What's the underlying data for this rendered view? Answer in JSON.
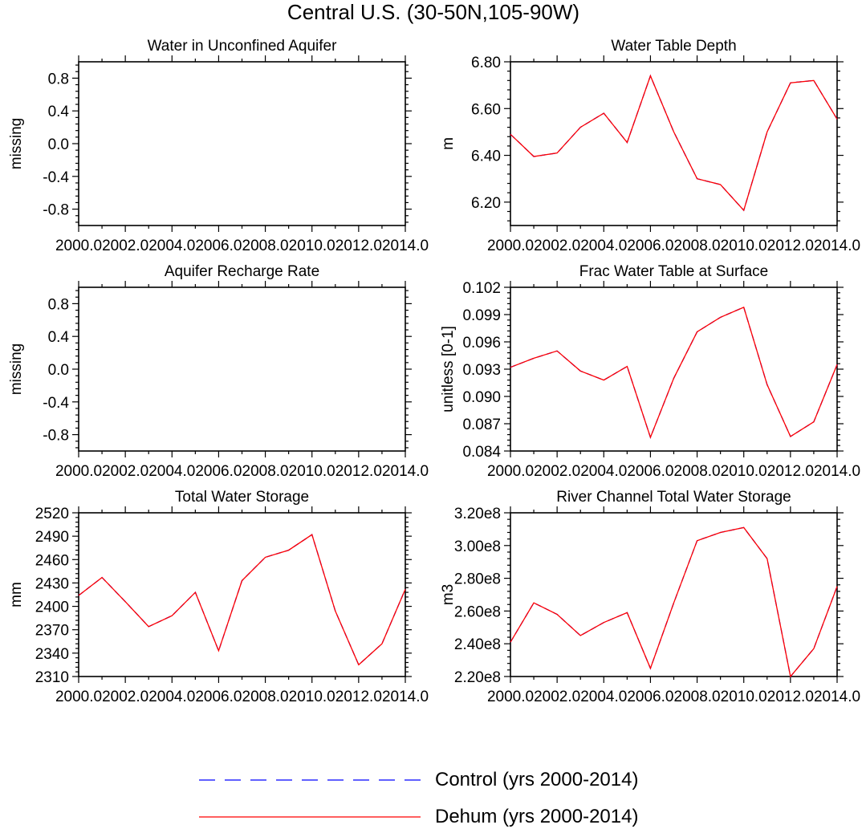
{
  "figure_title": "Central U.S. (30-50N,105-90W)",
  "legend": {
    "items": [
      {
        "label": "Control (yrs 2000-2014)",
        "color": "#0000ff",
        "style": "dashed"
      },
      {
        "label": "Dehum (yrs 2000-2014)",
        "color": "#ff0000",
        "style": "solid"
      }
    ]
  },
  "chart_data": [
    {
      "id": "water-unconfined-aquifer",
      "type": "line",
      "title": "Water in Unconfined Aquifer",
      "ylabel": "missing",
      "xlim": [
        2000,
        2014
      ],
      "ylim": [
        -1,
        1
      ],
      "xticks": [
        2000,
        2002,
        2004,
        2006,
        2008,
        2010,
        2012,
        2014
      ],
      "xtick_labels": [
        "2000.0",
        "2002.0",
        "2004.0",
        "2006.0",
        "2008.0",
        "2010.0",
        "2012.0",
        "2014.0"
      ],
      "yticks": [
        -0.8,
        -0.4,
        0.0,
        0.4,
        0.8
      ],
      "ytick_labels": [
        "-0.8",
        "-0.4",
        "0.0",
        "0.4",
        "0.8"
      ],
      "x": [],
      "series": []
    },
    {
      "id": "water-table-depth",
      "type": "line",
      "title": "Water Table Depth",
      "ylabel": "m",
      "xlim": [
        2000,
        2014
      ],
      "ylim": [
        6.1,
        6.8
      ],
      "xticks": [
        2000,
        2002,
        2004,
        2006,
        2008,
        2010,
        2012,
        2014
      ],
      "xtick_labels": [
        "2000.0",
        "2002.0",
        "2004.0",
        "2006.0",
        "2008.0",
        "2010.0",
        "2012.0",
        "2014.0"
      ],
      "yticks": [
        6.2,
        6.4,
        6.6,
        6.8
      ],
      "ytick_labels": [
        "6.20",
        "6.40",
        "6.60",
        "6.80"
      ],
      "x": [
        2000,
        2001,
        2002,
        2003,
        2004,
        2005,
        2006,
        2007,
        2008,
        2009,
        2010,
        2011,
        2012,
        2013,
        2014
      ],
      "series": [
        {
          "values": [
            6.49,
            6.395,
            6.41,
            6.52,
            6.58,
            6.455,
            6.74,
            6.5,
            6.3,
            6.275,
            6.165,
            6.5,
            6.71,
            6.72,
            6.555
          ],
          "color": "#0000ff",
          "style": "dashed"
        },
        {
          "values": [
            6.49,
            6.395,
            6.41,
            6.52,
            6.58,
            6.455,
            6.74,
            6.5,
            6.3,
            6.275,
            6.165,
            6.5,
            6.71,
            6.72,
            6.555
          ],
          "color": "#ff0000",
          "style": "solid"
        }
      ]
    },
    {
      "id": "aquifer-recharge-rate",
      "type": "line",
      "title": "Aquifer Recharge Rate",
      "ylabel": "missing",
      "xlim": [
        2000,
        2014
      ],
      "ylim": [
        -1,
        1
      ],
      "xticks": [
        2000,
        2002,
        2004,
        2006,
        2008,
        2010,
        2012,
        2014
      ],
      "xtick_labels": [
        "2000.0",
        "2002.0",
        "2004.0",
        "2006.0",
        "2008.0",
        "2010.0",
        "2012.0",
        "2014.0"
      ],
      "yticks": [
        -0.8,
        -0.4,
        0.0,
        0.4,
        0.8
      ],
      "ytick_labels": [
        "-0.8",
        "-0.4",
        "0.0",
        "0.4",
        "0.8"
      ],
      "x": [],
      "series": []
    },
    {
      "id": "frac-water-table-surface",
      "type": "line",
      "title": "Frac Water Table at Surface",
      "ylabel": "unitless [0-1]",
      "xlim": [
        2000,
        2014
      ],
      "ylim": [
        0.084,
        0.102
      ],
      "xticks": [
        2000,
        2002,
        2004,
        2006,
        2008,
        2010,
        2012,
        2014
      ],
      "xtick_labels": [
        "2000.0",
        "2002.0",
        "2004.0",
        "2006.0",
        "2008.0",
        "2010.0",
        "2012.0",
        "2014.0"
      ],
      "yticks": [
        0.084,
        0.087,
        0.09,
        0.093,
        0.096,
        0.099,
        0.102
      ],
      "ytick_labels": [
        "0.084",
        "0.087",
        "0.090",
        "0.093",
        "0.096",
        "0.099",
        "0.102"
      ],
      "x": [
        2000,
        2001,
        2002,
        2003,
        2004,
        2005,
        2006,
        2007,
        2008,
        2009,
        2010,
        2011,
        2012,
        2013,
        2014
      ],
      "series": [
        {
          "values": [
            0.0932,
            0.0942,
            0.095,
            0.0928,
            0.0918,
            0.0933,
            0.0855,
            0.092,
            0.0971,
            0.0987,
            0.0998,
            0.0913,
            0.0856,
            0.0872,
            0.0935
          ],
          "color": "#0000ff",
          "style": "dashed"
        },
        {
          "values": [
            0.0932,
            0.0942,
            0.095,
            0.0928,
            0.0918,
            0.0933,
            0.0855,
            0.092,
            0.0971,
            0.0987,
            0.0998,
            0.0913,
            0.0856,
            0.0872,
            0.0935
          ],
          "color": "#ff0000",
          "style": "solid"
        }
      ]
    },
    {
      "id": "total-water-storage",
      "type": "line",
      "title": "Total Water Storage",
      "ylabel": "mm",
      "xlim": [
        2000,
        2014
      ],
      "ylim": [
        2310,
        2520
      ],
      "xticks": [
        2000,
        2002,
        2004,
        2006,
        2008,
        2010,
        2012,
        2014
      ],
      "xtick_labels": [
        "2000.0",
        "2002.0",
        "2004.0",
        "2006.0",
        "2008.0",
        "2010.0",
        "2012.0",
        "2014.0"
      ],
      "yticks": [
        2310,
        2340,
        2370,
        2400,
        2430,
        2460,
        2490,
        2520
      ],
      "ytick_labels": [
        "2310",
        "2340",
        "2370",
        "2400",
        "2430",
        "2460",
        "2490",
        "2520"
      ],
      "x": [
        2000,
        2001,
        2002,
        2003,
        2004,
        2005,
        2006,
        2007,
        2008,
        2009,
        2010,
        2011,
        2012,
        2013,
        2014
      ],
      "series": [
        {
          "values": [
            2414,
            2437,
            2406,
            2374,
            2388,
            2418,
            2343,
            2433,
            2463,
            2472,
            2492,
            2394,
            2325,
            2352,
            2422
          ],
          "color": "#0000ff",
          "style": "dashed"
        },
        {
          "values": [
            2414,
            2437,
            2406,
            2374,
            2388,
            2418,
            2343,
            2433,
            2463,
            2472,
            2492,
            2394,
            2325,
            2352,
            2422
          ],
          "color": "#ff0000",
          "style": "solid"
        }
      ]
    },
    {
      "id": "river-channel-storage",
      "type": "line",
      "title": "River Channel Total Water Storage",
      "ylabel": "m3",
      "xlim": [
        2000,
        2014
      ],
      "ylim": [
        220000000,
        320000000
      ],
      "xticks": [
        2000,
        2002,
        2004,
        2006,
        2008,
        2010,
        2012,
        2014
      ],
      "xtick_labels": [
        "2000.0",
        "2002.0",
        "2004.0",
        "2006.0",
        "2008.0",
        "2010.0",
        "2012.0",
        "2014.0"
      ],
      "yticks": [
        220000000,
        240000000,
        260000000,
        280000000,
        300000000,
        320000000
      ],
      "ytick_labels": [
        "2.20e8",
        "2.40e8",
        "2.60e8",
        "2.80e8",
        "3.00e8",
        "3.20e8"
      ],
      "x": [
        2000,
        2001,
        2002,
        2003,
        2004,
        2005,
        2006,
        2007,
        2008,
        2009,
        2010,
        2011,
        2012,
        2013,
        2014
      ],
      "series": [
        {
          "values": [
            241000000,
            265000000,
            258000000,
            245000000,
            253000000,
            259000000,
            225000000,
            265000000,
            303000000,
            308000000,
            311000000,
            292000000,
            220000000,
            237000000,
            275000000
          ],
          "color": "#0000ff",
          "style": "dashed"
        },
        {
          "values": [
            241000000,
            265000000,
            258000000,
            245000000,
            253000000,
            259000000,
            225000000,
            265000000,
            303000000,
            308000000,
            311000000,
            292000000,
            220000000,
            237000000,
            275000000
          ],
          "color": "#ff0000",
          "style": "solid"
        }
      ]
    }
  ]
}
